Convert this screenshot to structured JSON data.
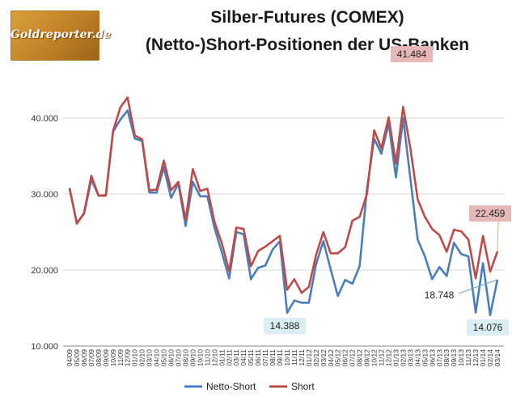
{
  "header": {
    "logo_text": "Goldreporter.de",
    "title_line1": "Silber-Futures (COMEX)",
    "title_line2": "(Netto-)Short-Positionen der US-Banken"
  },
  "colors": {
    "netto": "#4a7ebb",
    "short": "#be4b48",
    "red_box": "#e6b9b8",
    "blue_box": "#dbeef4",
    "grid": "#d9d9d9"
  },
  "chart_data": {
    "type": "line",
    "x": [
      "04/09",
      "05/09",
      "06/09",
      "07/09",
      "08/09",
      "09/09",
      "10/09",
      "11/09",
      "12/09",
      "01/10",
      "02/10",
      "03/10",
      "04/10",
      "05/10",
      "06/10",
      "07/10",
      "08/10",
      "09/10",
      "10/10",
      "11/10",
      "12/10",
      "01/11",
      "02/11",
      "03/11",
      "04/11",
      "05/11",
      "06/11",
      "07/11",
      "08/11",
      "09/11",
      "10/11",
      "11/11",
      "12/11",
      "01/12",
      "02/12",
      "03/12",
      "04/12",
      "05/12",
      "06/12",
      "07/12",
      "08/12",
      "09/12",
      "10/12",
      "11/12",
      "12/12",
      "01/13",
      "02/13",
      "03/13",
      "04/13",
      "05/13",
      "06/13",
      "07/13",
      "08/13",
      "09/13",
      "10/13",
      "11/13",
      "12/13",
      "01/14",
      "02/14",
      "03/14"
    ],
    "series": [
      {
        "name": "Netto-Short",
        "color": "#4a7ebb",
        "values": [
          30700,
          26200,
          27400,
          31900,
          29800,
          29800,
          38200,
          39800,
          41000,
          37300,
          37000,
          30200,
          30200,
          33500,
          29500,
          31400,
          25800,
          31600,
          29700,
          29700,
          25500,
          22300,
          18900,
          25000,
          24700,
          18800,
          20300,
          20600,
          22700,
          23800,
          14388,
          16000,
          15700,
          15700,
          20800,
          23800,
          20100,
          16600,
          18700,
          18200,
          20500,
          30600,
          37300,
          35300,
          39300,
          32200,
          40000,
          32000,
          24000,
          21800,
          18800,
          20400,
          19200,
          23600,
          22100,
          21800,
          14400,
          20900,
          14076,
          18748
        ]
      },
      {
        "name": "Short",
        "color": "#be4b48",
        "values": [
          30800,
          26100,
          27500,
          32400,
          29800,
          29800,
          38300,
          41400,
          42700,
          37700,
          37200,
          30500,
          30600,
          34400,
          30500,
          31600,
          26600,
          33300,
          30400,
          30700,
          26300,
          23500,
          19900,
          25600,
          25400,
          20500,
          22500,
          23100,
          23800,
          24500,
          17400,
          18800,
          17000,
          17800,
          22000,
          25000,
          22200,
          22200,
          23000,
          26500,
          27000,
          30000,
          38400,
          36000,
          40100,
          34000,
          41484,
          36000,
          29300,
          27000,
          25400,
          24600,
          22400,
          25300,
          25100,
          24000,
          18900,
          24500,
          19800,
          22459
        ]
      }
    ],
    "xlabel": "",
    "ylabel": "",
    "ylim": [
      10000,
      45000
    ],
    "yticks": [
      10000,
      20000,
      30000,
      40000
    ],
    "ytick_labels": [
      "10.000",
      "20.000",
      "30.000",
      "40.000"
    ],
    "grid": true,
    "legend_position": "bottom",
    "annotations": [
      {
        "text": "41.484",
        "series": "Short",
        "x": "02/13",
        "style": "red"
      },
      {
        "text": "22.459",
        "series": "Short",
        "x": "03/14",
        "style": "red"
      },
      {
        "text": "14.388",
        "series": "Netto-Short",
        "x": "10/11",
        "style": "blue"
      },
      {
        "text": "14.076",
        "series": "Netto-Short",
        "x": "02/14",
        "style": "blue"
      },
      {
        "text": "18.748",
        "series": "Netto-Short",
        "x": "03/14",
        "style": "plain"
      }
    ]
  }
}
